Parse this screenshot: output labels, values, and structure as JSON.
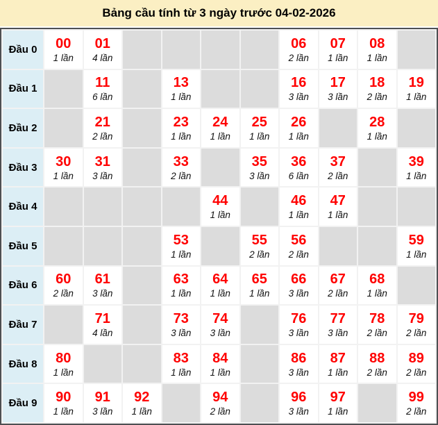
{
  "title": "Bảng cầu tính từ 3 ngày trước 04-02-2026",
  "colors": {
    "title_bg": "#fbefc3",
    "label_bg": "#dceef5",
    "empty_cell_bg": "#dcdcdc",
    "filled_cell_bg": "#ffffff",
    "number_red": "#ff0000",
    "count_text": "#111111",
    "outer_border": "#4d4f52",
    "grid_line": "#f2f2f2"
  },
  "chart_data": {
    "type": "table",
    "title": "Bảng cầu tính từ 3 ngày trước 04-02-2026",
    "columns_meaning": "last digit 0-9 of the two-digit number",
    "count_unit": "lần",
    "rows": [
      {
        "label": "Đầu 0",
        "cells": [
          {
            "number": "00",
            "count": "1 lần"
          },
          {
            "number": "01",
            "count": "4 lần"
          },
          null,
          null,
          null,
          null,
          {
            "number": "06",
            "count": "2 lần"
          },
          {
            "number": "07",
            "count": "1 lần"
          },
          {
            "number": "08",
            "count": "1 lần"
          },
          null
        ]
      },
      {
        "label": "Đầu 1",
        "cells": [
          null,
          {
            "number": "11",
            "count": "6 lần"
          },
          null,
          {
            "number": "13",
            "count": "1 lần"
          },
          null,
          null,
          {
            "number": "16",
            "count": "3 lần"
          },
          {
            "number": "17",
            "count": "3 lần"
          },
          {
            "number": "18",
            "count": "2 lần"
          },
          {
            "number": "19",
            "count": "1 lần"
          }
        ]
      },
      {
        "label": "Đầu 2",
        "cells": [
          null,
          {
            "number": "21",
            "count": "2 lần"
          },
          null,
          {
            "number": "23",
            "count": "1 lần"
          },
          {
            "number": "24",
            "count": "1 lần"
          },
          {
            "number": "25",
            "count": "1 lần"
          },
          {
            "number": "26",
            "count": "1 lần"
          },
          null,
          {
            "number": "28",
            "count": "1 lần"
          },
          null
        ]
      },
      {
        "label": "Đầu 3",
        "cells": [
          {
            "number": "30",
            "count": "1 lần"
          },
          {
            "number": "31",
            "count": "3 lần"
          },
          null,
          {
            "number": "33",
            "count": "2 lần"
          },
          null,
          {
            "number": "35",
            "count": "3 lần"
          },
          {
            "number": "36",
            "count": "6 lần"
          },
          {
            "number": "37",
            "count": "2 lần"
          },
          null,
          {
            "number": "39",
            "count": "1 lần"
          }
        ]
      },
      {
        "label": "Đầu 4",
        "cells": [
          null,
          null,
          null,
          null,
          {
            "number": "44",
            "count": "1 lần"
          },
          null,
          {
            "number": "46",
            "count": "1 lần"
          },
          {
            "number": "47",
            "count": "1 lần"
          },
          null,
          null
        ]
      },
      {
        "label": "Đầu 5",
        "cells": [
          null,
          null,
          null,
          {
            "number": "53",
            "count": "1 lần"
          },
          null,
          {
            "number": "55",
            "count": "2 lần"
          },
          {
            "number": "56",
            "count": "2 lần"
          },
          null,
          null,
          {
            "number": "59",
            "count": "1 lần"
          }
        ]
      },
      {
        "label": "Đầu 6",
        "cells": [
          {
            "number": "60",
            "count": "2 lần"
          },
          {
            "number": "61",
            "count": "3 lần"
          },
          null,
          {
            "number": "63",
            "count": "1 lần"
          },
          {
            "number": "64",
            "count": "1 lần"
          },
          {
            "number": "65",
            "count": "1 lần"
          },
          {
            "number": "66",
            "count": "3 lần"
          },
          {
            "number": "67",
            "count": "2 lần"
          },
          {
            "number": "68",
            "count": "1 lần"
          },
          null
        ]
      },
      {
        "label": "Đầu 7",
        "cells": [
          null,
          {
            "number": "71",
            "count": "4 lần"
          },
          null,
          {
            "number": "73",
            "count": "3 lần"
          },
          {
            "number": "74",
            "count": "3 lần"
          },
          null,
          {
            "number": "76",
            "count": "3 lần"
          },
          {
            "number": "77",
            "count": "3 lần"
          },
          {
            "number": "78",
            "count": "2 lần"
          },
          {
            "number": "79",
            "count": "2 lần"
          }
        ]
      },
      {
        "label": "Đầu 8",
        "cells": [
          {
            "number": "80",
            "count": "1 lần"
          },
          null,
          null,
          {
            "number": "83",
            "count": "1 lần"
          },
          {
            "number": "84",
            "count": "1 lần"
          },
          null,
          {
            "number": "86",
            "count": "3 lần"
          },
          {
            "number": "87",
            "count": "1 lần"
          },
          {
            "number": "88",
            "count": "2 lần"
          },
          {
            "number": "89",
            "count": "2 lần"
          }
        ]
      },
      {
        "label": "Đầu 9",
        "cells": [
          {
            "number": "90",
            "count": "1 lần"
          },
          {
            "number": "91",
            "count": "3 lần"
          },
          {
            "number": "92",
            "count": "1 lần"
          },
          null,
          {
            "number": "94",
            "count": "2 lần"
          },
          null,
          {
            "number": "96",
            "count": "3 lần"
          },
          {
            "number": "97",
            "count": "1 lần"
          },
          null,
          {
            "number": "99",
            "count": "2 lần"
          }
        ]
      }
    ]
  }
}
